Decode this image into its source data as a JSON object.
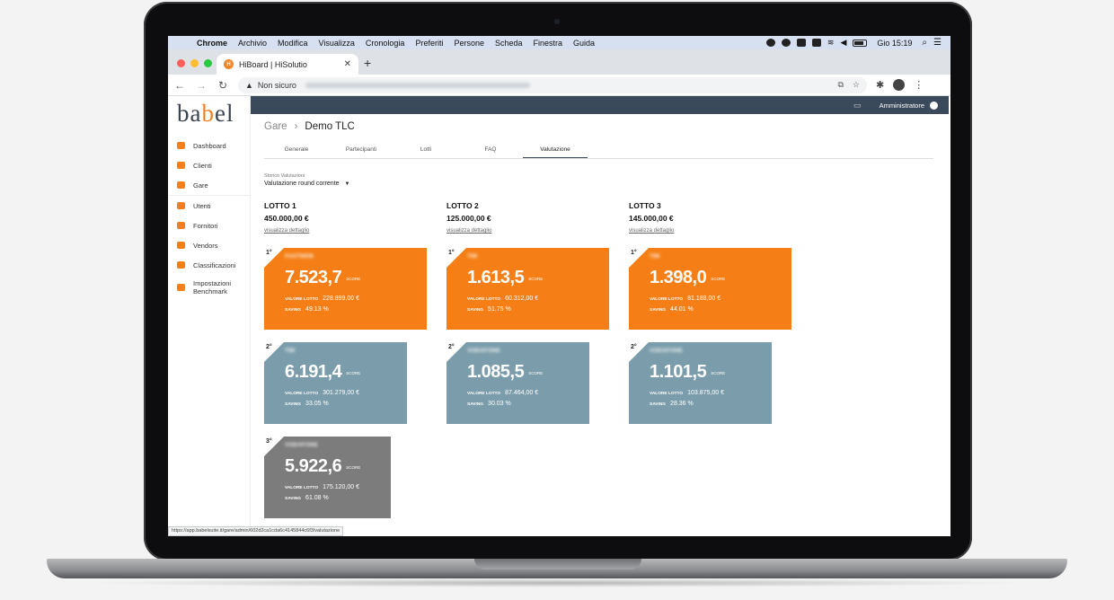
{
  "menubar": {
    "items": [
      "Chrome",
      "Archivio",
      "Modifica",
      "Visualizza",
      "Cronologia",
      "Preferiti",
      "Persone",
      "Scheda",
      "Finestra",
      "Guida"
    ],
    "clock": "Gio 15:19"
  },
  "browser": {
    "tab_title": "HiBoard | HiSolutio",
    "security_label": "Non sicuro",
    "status_url": "https://app.babelsuite.it/gare/admin/602d2ca1cda6c4145844c6f3/valutazione"
  },
  "app": {
    "logo": {
      "part1": "ba",
      "part2": "b",
      "part3": "el"
    },
    "user": "Amministratore",
    "sidebar": [
      {
        "label": "Dashboard",
        "icon": "dashboard-icon"
      },
      {
        "label": "Clienti",
        "icon": "clients-icon"
      },
      {
        "label": "Gare",
        "icon": "trophy-icon"
      },
      {
        "label": "Utenti",
        "icon": "users-icon"
      },
      {
        "label": "Fornitori",
        "icon": "suppliers-icon"
      },
      {
        "label": "Vendors",
        "icon": "tag-icon"
      },
      {
        "label": "Classificazioni",
        "icon": "book-icon"
      },
      {
        "label_1": "Impostazioni",
        "label_2": "Benchmark",
        "icon": "settings-icon"
      }
    ],
    "breadcrumb": {
      "root": "Gare",
      "current": "Demo TLC"
    },
    "tabs": [
      "Generale",
      "Partecipanti",
      "Lotti",
      "FAQ",
      "Valutazione"
    ],
    "active_tab": "Valutazione",
    "storico": {
      "label": "Storico Valutazioni",
      "value": "Valutazione round corrente"
    },
    "labels": {
      "score_unit": "SCORE",
      "valore": "VALORE LOTTO",
      "saving": "SAVING",
      "dettaglio": "visualizza dettaglio"
    },
    "lotti": [
      {
        "name": "LOTTO 1",
        "amount": "450.000,00 €",
        "ranks": [
          {
            "rank": "1°",
            "vendor": "FASTWEB",
            "score": "7.523,7",
            "valore": "228.899,00 €",
            "saving": "49.13 %",
            "color": "#f57f16"
          },
          {
            "rank": "2°",
            "vendor": "TIM",
            "score": "6.191,4",
            "valore": "301.279,00 €",
            "saving": "33.05 %",
            "color": "#7b9dab"
          },
          {
            "rank": "3°",
            "vendor": "VODAFONE",
            "score": "5.922,6",
            "valore": "175.120,00 €",
            "saving": "61.08 %",
            "color": "#7c7c7c"
          }
        ]
      },
      {
        "name": "LOTTO 2",
        "amount": "125.000,00 €",
        "ranks": [
          {
            "rank": "1°",
            "vendor": "TIM",
            "score": "1.613,5",
            "valore": "60.312,00 €",
            "saving": "51.75 %",
            "color": "#f57f16"
          },
          {
            "rank": "2°",
            "vendor": "VODAFONE",
            "score": "1.085,5",
            "valore": "87.464,00 €",
            "saving": "30.03 %",
            "color": "#7b9dab"
          }
        ]
      },
      {
        "name": "LOTTO 3",
        "amount": "145.000,00 €",
        "ranks": [
          {
            "rank": "1°",
            "vendor": "TIM",
            "score": "1.398,0",
            "valore": "81.188,00 €",
            "saving": "44.01 %",
            "color": "#f57f16"
          },
          {
            "rank": "2°",
            "vendor": "VODAFONE",
            "score": "1.101,5",
            "valore": "103.875,00 €",
            "saving": "28.36 %",
            "color": "#7b9dab"
          }
        ]
      }
    ]
  }
}
